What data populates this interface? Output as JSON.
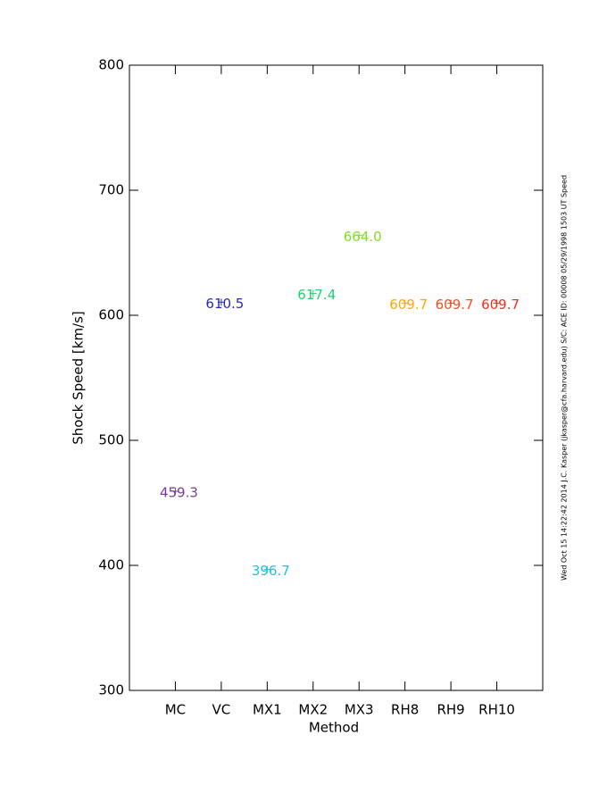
{
  "chart_data": {
    "type": "scatter",
    "x_label": "Method",
    "y_label": "Shock Speed [km/s]",
    "annotation": "Wed Oct 15 14:22:42 2014   J.C. Kasper (jkasper@cfa.harvard.edu)   S/C: ACE ID: 00008 05/29/1998   1503 UT Speed",
    "categories": [
      "MC",
      "VC",
      "MX1",
      "MX2",
      "MX3",
      "RH8",
      "RH9",
      "RH10"
    ],
    "values": [
      459.3,
      610.5,
      396.7,
      617.4,
      664.0,
      609.7,
      609.7,
      609.7
    ],
    "value_labels": [
      "459.3",
      "610.5",
      "396.7",
      "617.4",
      "664.0",
      "609.7",
      "609.7",
      "609.7"
    ],
    "colors": [
      "#7a3a9a",
      "#2a2ab8",
      "#22c0e0",
      "#20d070",
      "#80e020",
      "#ffa800",
      "#ff4a20",
      "#ff2a20"
    ],
    "ylim": [
      300,
      800
    ],
    "yticks": [
      300,
      400,
      500,
      600,
      700,
      800
    ]
  }
}
